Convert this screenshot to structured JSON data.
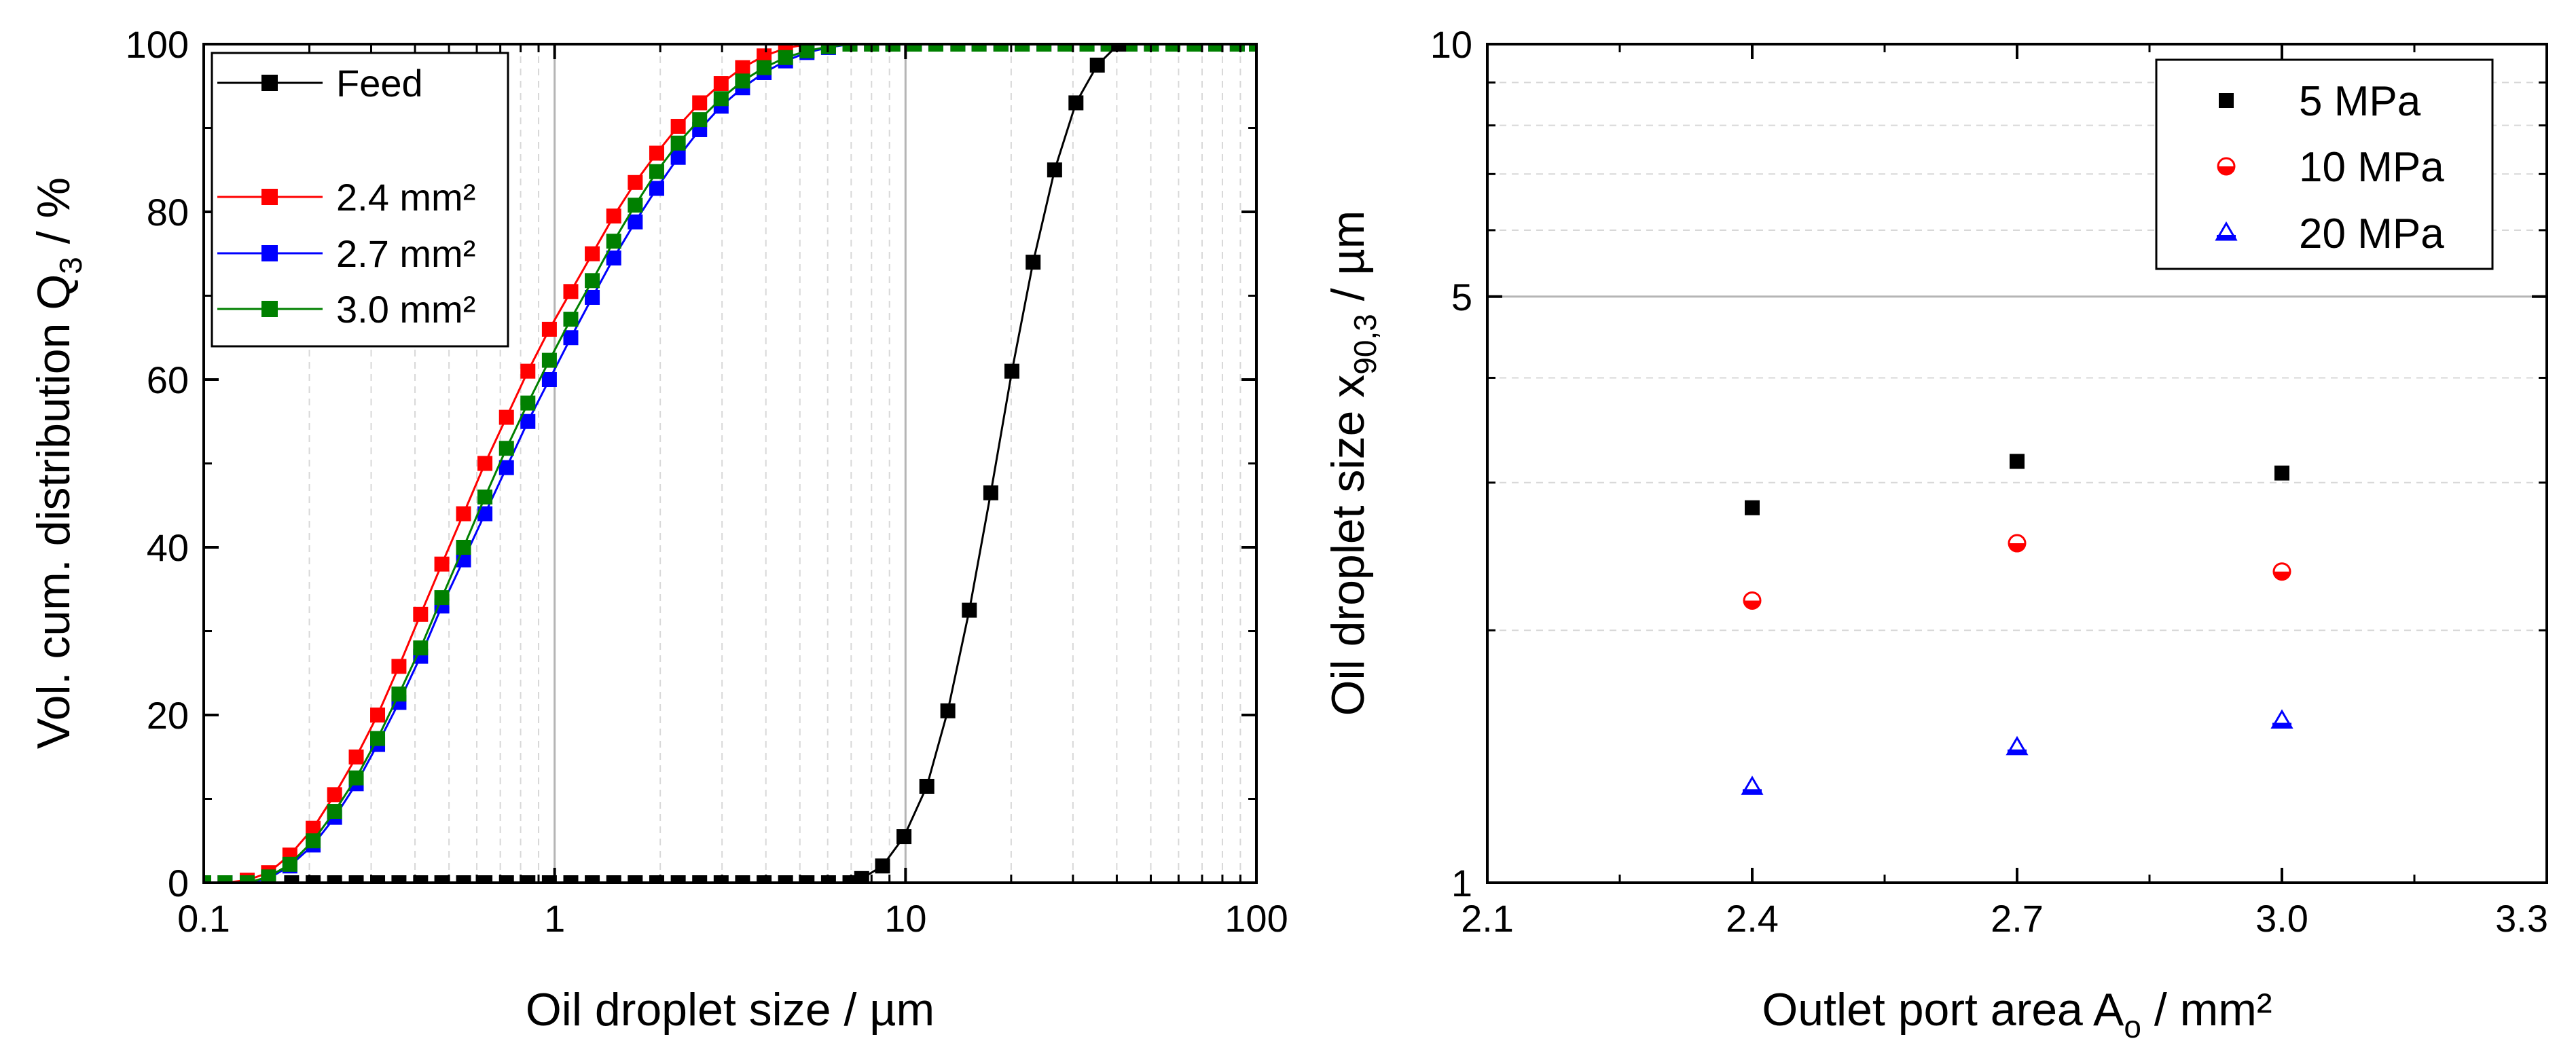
{
  "colors": {
    "feed": "#000000",
    "red": "#ff0000",
    "blue": "#0000ff",
    "green": "#008000",
    "grid": "#cccccc"
  },
  "chart_data": [
    {
      "type": "line",
      "title": "",
      "xlabel": "Oil droplet size / µm",
      "ylabel": "Vol. cum. distribution Q",
      "ylabel_sub": "3",
      "ylabel_suffix": " / %",
      "xscale": "log",
      "xlim": [
        0.1,
        100
      ],
      "ylim": [
        0,
        100
      ],
      "xticks": [
        "0.1",
        "1",
        "10",
        "100"
      ],
      "yticks": [
        "0",
        "20",
        "40",
        "60",
        "80",
        "100"
      ],
      "legend_position": "top-left",
      "series": [
        {
          "name": "Feed",
          "color": "#000000",
          "x": [
            0.178,
            0.205,
            0.236,
            0.272,
            0.313,
            0.36,
            0.415,
            0.477,
            0.55,
            0.633,
            0.729,
            0.839,
            0.966,
            1.112,
            1.28,
            1.474,
            1.697,
            1.954,
            2.25,
            2.59,
            2.982,
            3.433,
            3.953,
            4.551,
            5.239,
            6.032,
            6.945,
            7.5,
            8.6,
            9.9,
            11.5,
            13.2,
            15.2,
            17.5,
            20.1,
            23.1,
            26.6,
            30.6,
            35.2,
            40.5
          ],
          "y": [
            0,
            0,
            0,
            0,
            0,
            0,
            0,
            0,
            0,
            0,
            0,
            0,
            0,
            0,
            0,
            0,
            0,
            0,
            0,
            0,
            0,
            0,
            0,
            0,
            0,
            0,
            0,
            0.5,
            2,
            5.5,
            11.5,
            20.5,
            32.5,
            46.5,
            61,
            74,
            85,
            93,
            97.5,
            100
          ]
        },
        {
          "name": "2.4 mm²",
          "color": "#ff0000",
          "x": [
            0.1,
            0.115,
            0.133,
            0.153,
            0.176,
            0.205,
            0.236,
            0.272,
            0.313,
            0.36,
            0.415,
            0.477,
            0.55,
            0.633,
            0.729,
            0.839,
            0.966,
            1.112,
            1.28,
            1.474,
            1.697,
            1.954,
            2.25,
            2.59,
            2.982,
            3.433,
            3.953,
            4.551,
            5.239,
            6.032,
            6.945,
            8.0,
            9.2,
            10.6,
            12.2,
            14.1,
            16.2,
            18.7,
            21.5,
            24.8,
            28.5,
            32.9,
            37.8,
            43.6,
            50.2,
            57.8,
            66.5,
            76.6,
            88.2,
            100
          ],
          "y": [
            0,
            0,
            0.3,
            1.2,
            3.3,
            6.5,
            10.5,
            15,
            20,
            25.8,
            32,
            38,
            44,
            50,
            55.5,
            61,
            66,
            70.5,
            75,
            79.5,
            83.5,
            87,
            90.2,
            93,
            95.3,
            97.2,
            98.6,
            99.5,
            100,
            100,
            100,
            100,
            100,
            100,
            100,
            100,
            100,
            100,
            100,
            100,
            100,
            100,
            100,
            100,
            100,
            100,
            100,
            100,
            100,
            100
          ]
        },
        {
          "name": "2.7 mm²",
          "color": "#0000ff",
          "x": [
            0.1,
            0.115,
            0.133,
            0.153,
            0.176,
            0.205,
            0.236,
            0.272,
            0.313,
            0.36,
            0.415,
            0.477,
            0.55,
            0.633,
            0.729,
            0.839,
            0.966,
            1.112,
            1.28,
            1.474,
            1.697,
            1.954,
            2.25,
            2.59,
            2.982,
            3.433,
            3.953,
            4.551,
            5.239,
            6.032,
            6.945,
            8.0,
            9.2,
            10.6,
            12.2,
            14.1,
            16.2,
            18.7,
            21.5,
            24.8,
            28.5,
            32.9,
            37.8,
            43.6,
            50.2,
            57.8,
            66.5,
            76.6,
            88.2,
            100
          ],
          "y": [
            0,
            0,
            0,
            0.5,
            2,
            4.5,
            7.8,
            11.8,
            16.5,
            21.5,
            27,
            33,
            38.5,
            44,
            49.5,
            55,
            60,
            65,
            69.8,
            74.5,
            78.8,
            82.8,
            86.5,
            89.8,
            92.6,
            94.8,
            96.6,
            98,
            99,
            99.6,
            100,
            100,
            100,
            100,
            100,
            100,
            100,
            100,
            100,
            100,
            100,
            100,
            100,
            100,
            100,
            100,
            100,
            100,
            100,
            100
          ]
        },
        {
          "name": "3.0 mm²",
          "color": "#008000",
          "x": [
            0.1,
            0.115,
            0.133,
            0.153,
            0.176,
            0.205,
            0.236,
            0.272,
            0.313,
            0.36,
            0.415,
            0.477,
            0.55,
            0.633,
            0.729,
            0.839,
            0.966,
            1.112,
            1.28,
            1.474,
            1.697,
            1.954,
            2.25,
            2.59,
            2.982,
            3.433,
            3.953,
            4.551,
            5.239,
            6.032,
            6.945,
            8.0,
            9.2,
            10.6,
            12.2,
            14.1,
            16.2,
            18.7,
            21.5,
            24.8,
            28.5,
            32.9,
            37.8,
            43.6,
            50.2,
            57.8,
            66.5,
            76.6,
            88.2,
            100
          ],
          "y": [
            0,
            0,
            0,
            0.7,
            2.2,
            5,
            8.5,
            12.5,
            17.2,
            22.5,
            28,
            34,
            40,
            46,
            51.8,
            57.2,
            62.3,
            67.2,
            71.8,
            76.5,
            80.8,
            84.8,
            88.2,
            91,
            93.5,
            95.6,
            97.2,
            98.4,
            99.2,
            99.7,
            100,
            100,
            100,
            100,
            100,
            100,
            100,
            100,
            100,
            100,
            100,
            100,
            100,
            100,
            100,
            100,
            100,
            100,
            100,
            100
          ]
        }
      ]
    },
    {
      "type": "scatter",
      "title": "",
      "xlabel": "Outlet port area A",
      "xlabel_sub": "o",
      "xlabel_suffix": " / mm²",
      "ylabel": "Oil droplet size x",
      "ylabel_sub": "90,3",
      "ylabel_suffix": " / µm",
      "yscale": "log",
      "xlim": [
        2.1,
        3.3
      ],
      "ylim": [
        1,
        10
      ],
      "xticks": [
        "2.1",
        "2.4",
        "2.7",
        "3.0",
        "3.3"
      ],
      "yticks": [
        "1",
        "5",
        "10"
      ],
      "legend_position": "top-right",
      "series": [
        {
          "name": "5 MPa",
          "color": "#000000",
          "marker": "square",
          "x": [
            2.4,
            2.7,
            3.0
          ],
          "y": [
            2.8,
            3.18,
            3.08
          ]
        },
        {
          "name": "10 MPa",
          "color": "#ff0000",
          "marker": "half-circle",
          "x": [
            2.4,
            2.7,
            3.0
          ],
          "y": [
            2.17,
            2.54,
            2.35
          ]
        },
        {
          "name": "20 MPa",
          "color": "#0000ff",
          "marker": "triangle",
          "x": [
            2.4,
            2.7,
            3.0
          ],
          "y": [
            1.3,
            1.45,
            1.56
          ]
        }
      ]
    }
  ]
}
